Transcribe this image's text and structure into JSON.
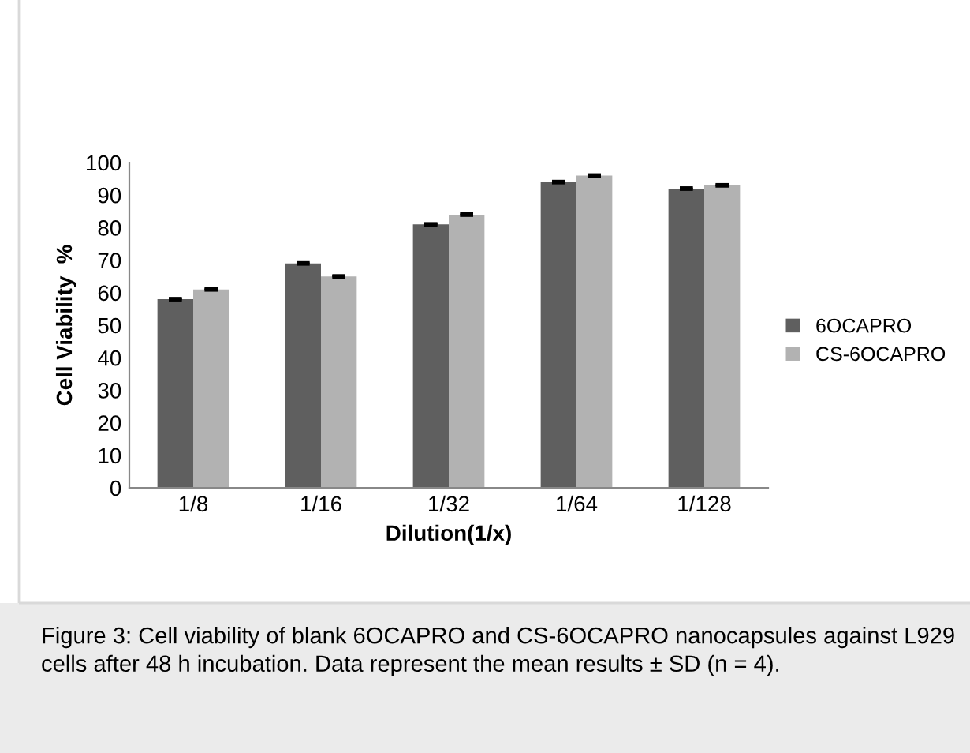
{
  "chart_data": {
    "type": "bar",
    "xlabel": "Dilution(1/x)",
    "ylabel": "Cell Viability  %",
    "categories": [
      "1/8",
      "1/16",
      "1/32",
      "1/64",
      "1/128"
    ],
    "series": [
      {
        "name": "6OCAPRO",
        "color": "#5f5f5f",
        "values": [
          58,
          69,
          81,
          94,
          92
        ],
        "errors": [
          0.2,
          0.2,
          0.2,
          0.2,
          0.2
        ]
      },
      {
        "name": "CS-6OCAPRO",
        "color": "#b2b2b2",
        "values": [
          61,
          65,
          84,
          96,
          93
        ],
        "errors": [
          0.2,
          0.2,
          0.2,
          0.2,
          0.2
        ]
      }
    ],
    "ylim": [
      0,
      100
    ],
    "yticks": [
      0,
      10,
      20,
      30,
      40,
      50,
      60,
      70,
      80,
      90,
      100
    ],
    "grid": false,
    "legend": "right",
    "annotations": [
      "Figure 3: Cell viability of blank 6OCAPRO and CS-6OCAPRO nanocapsules against L929 cells after 48 h incubation. Data represent the mean results ± SD (n = 4)."
    ]
  }
}
